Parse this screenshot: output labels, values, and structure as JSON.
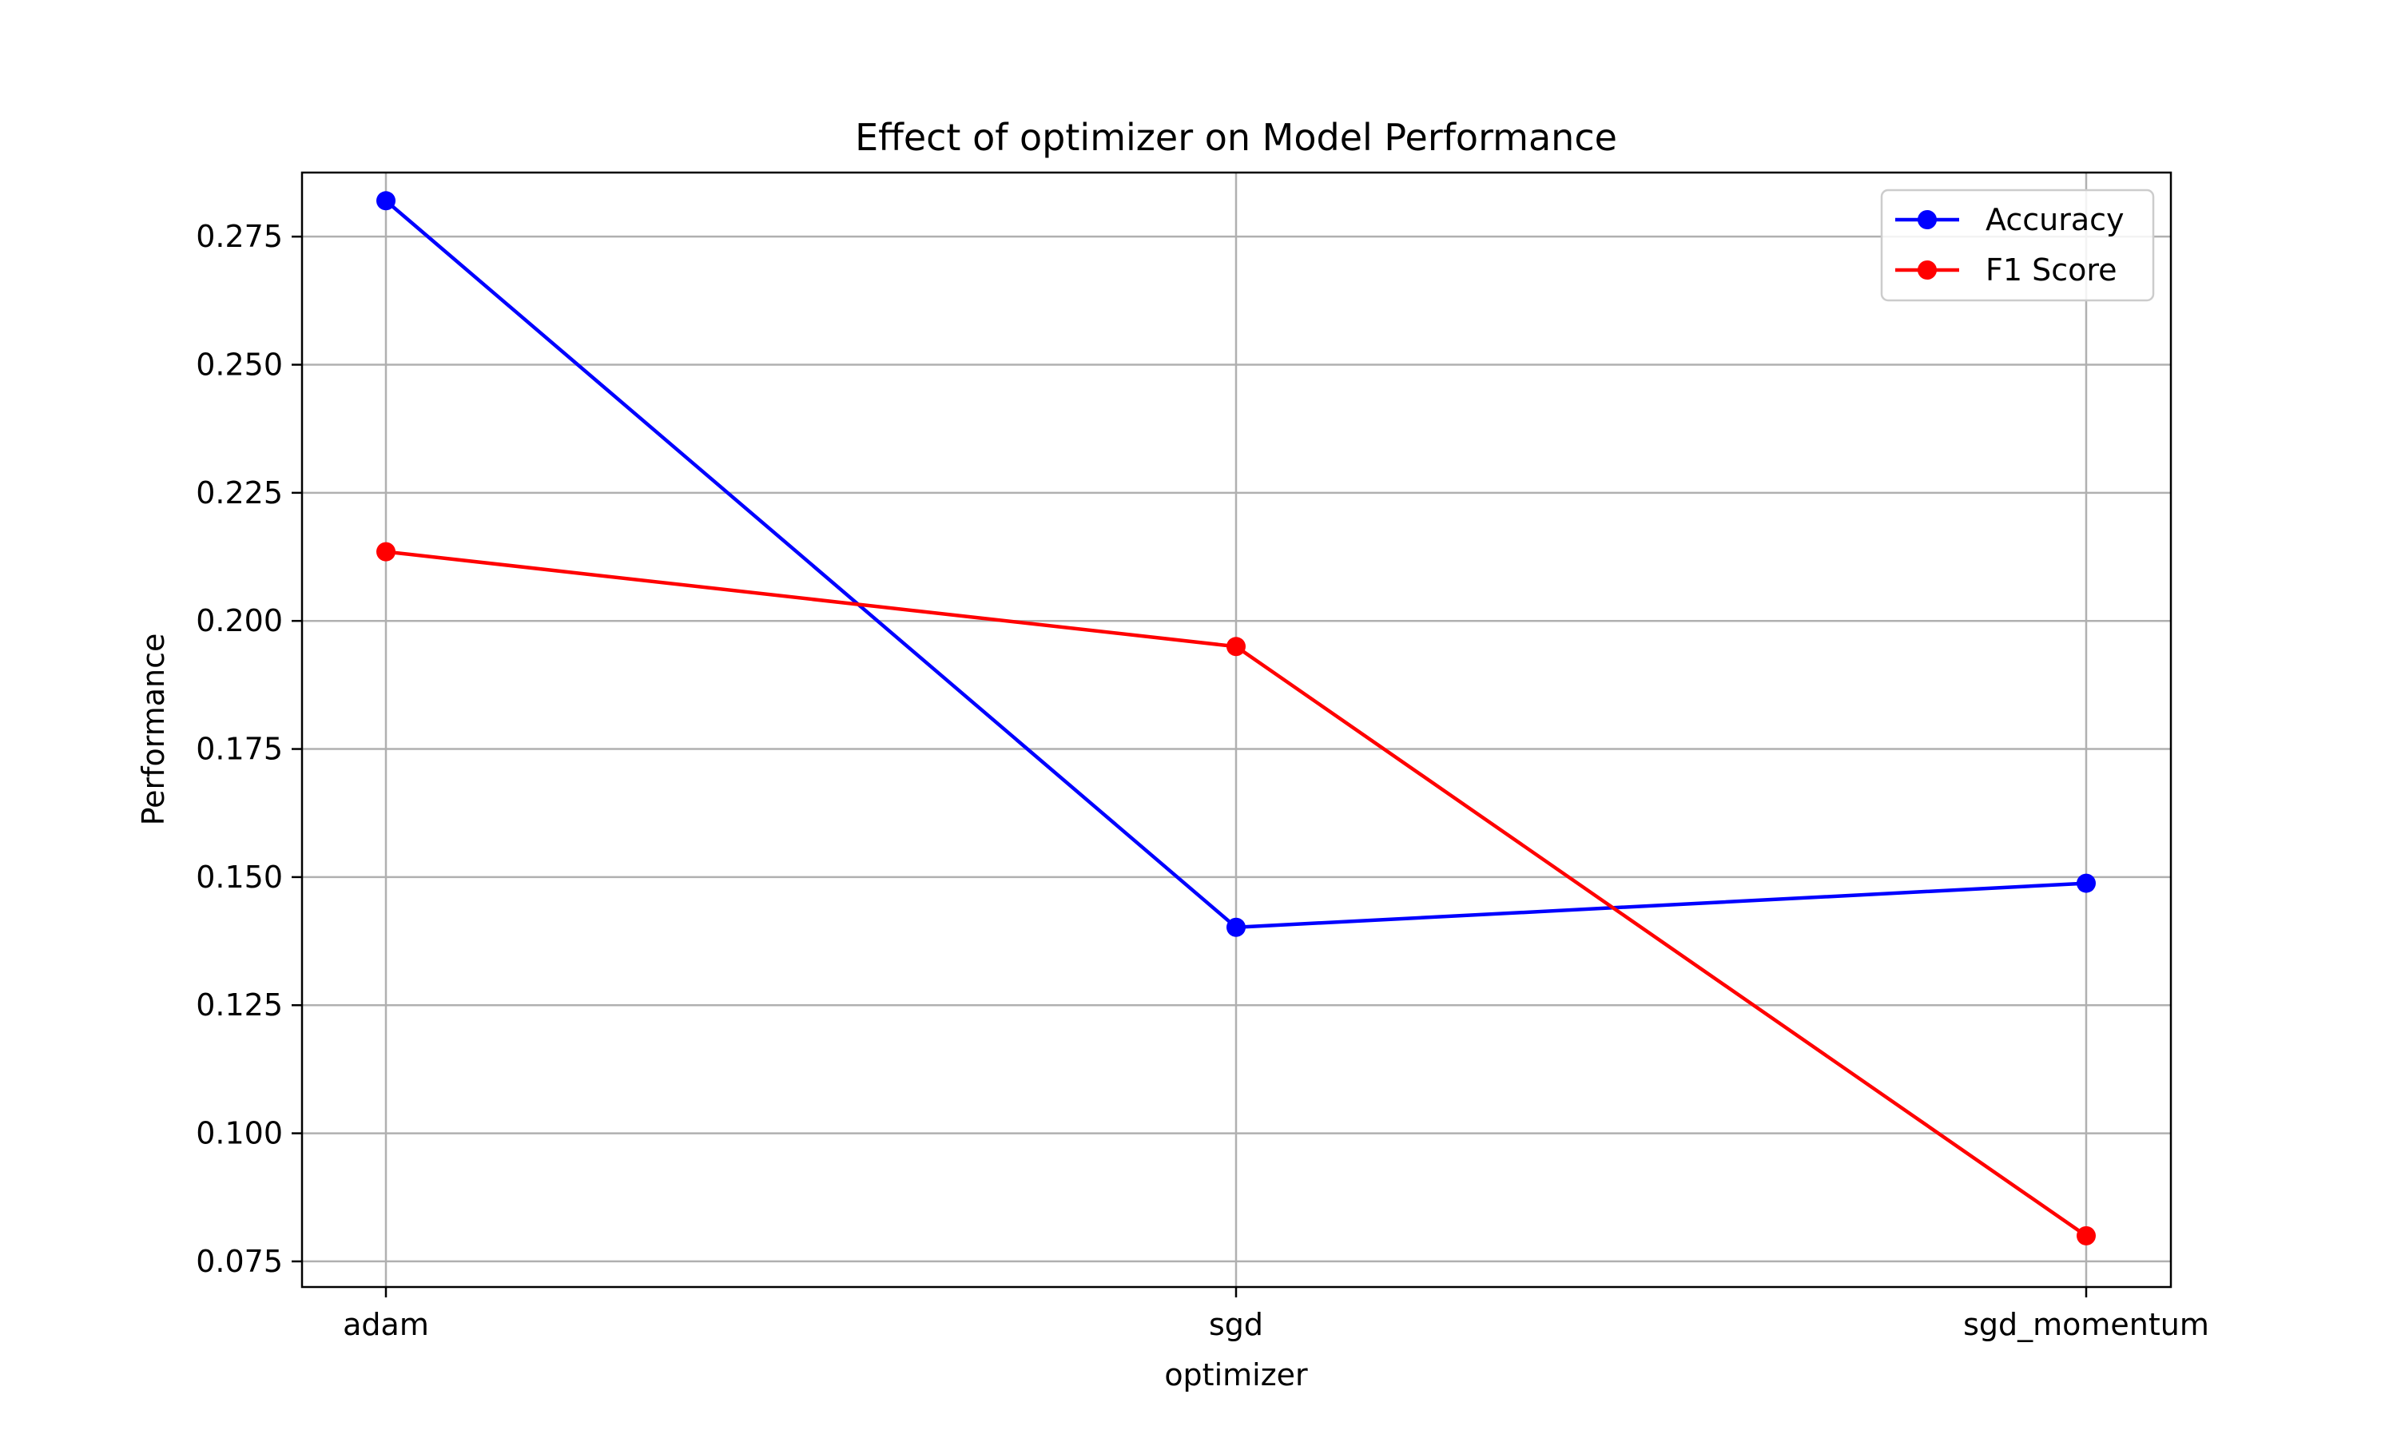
{
  "chart_data": {
    "type": "line",
    "title": "Effect of optimizer on Model Performance",
    "xlabel": "optimizer",
    "ylabel": "Performance",
    "categories": [
      "adam",
      "sgd",
      "sgd_momentum"
    ],
    "ylim": [
      0.07,
      0.2875
    ],
    "yticks": [
      0.075,
      0.1,
      0.125,
      0.15,
      0.175,
      0.2,
      0.225,
      0.25,
      0.275
    ],
    "ytick_labels": [
      "0.075",
      "0.100",
      "0.125",
      "0.150",
      "0.175",
      "0.200",
      "0.225",
      "0.250",
      "0.275"
    ],
    "grid": true,
    "legend_position": "top-right",
    "series": [
      {
        "name": "Accuracy",
        "color": "#0000ff",
        "values": [
          0.282,
          0.1402,
          0.1488
        ]
      },
      {
        "name": "F1 Score",
        "color": "#ff0000",
        "values": [
          0.2135,
          0.195,
          0.08
        ]
      }
    ]
  }
}
